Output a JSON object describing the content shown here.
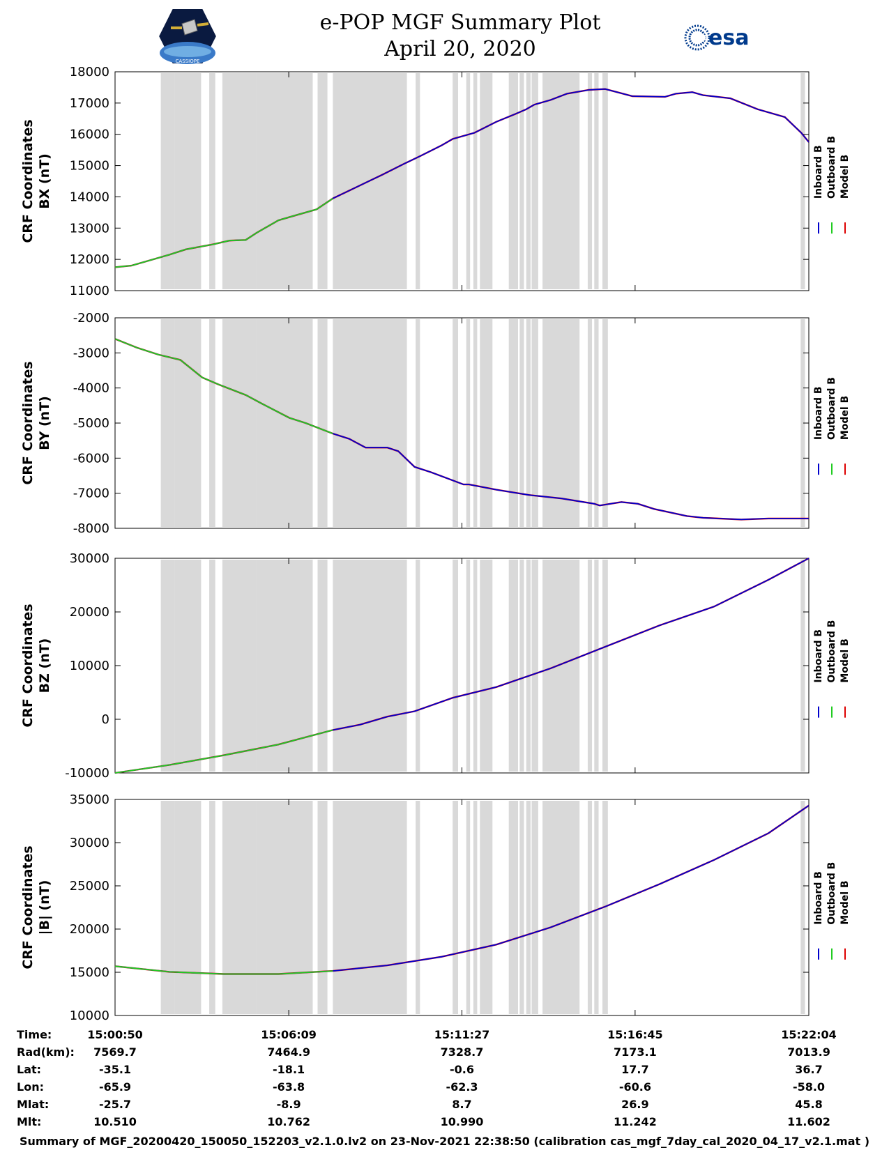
{
  "header": {
    "title_line1": "e-POP MGF Summary Plot",
    "title_line2": "April 20, 2020",
    "left_logo": "epop-cassiope-logo",
    "left_logo_text": "CASSIOPE",
    "right_logo": "esa-logo",
    "right_logo_text": "esa"
  },
  "colors": {
    "inboard": "#0000cc",
    "outboard": "#22cc22",
    "model": "#dd0000",
    "gap_shading": "#d9d9d9"
  },
  "chart_data": {
    "type": "line",
    "x_range_seconds": [
      0,
      1274
    ],
    "gap_intervals_seconds": [
      [
        84,
        110
      ],
      [
        110,
        158
      ],
      [
        173,
        184
      ],
      [
        197,
        261
      ],
      [
        261,
        363
      ],
      [
        372,
        390
      ],
      [
        400,
        536
      ],
      [
        552,
        560
      ],
      [
        620,
        630
      ],
      [
        645,
        652
      ],
      [
        658,
        665
      ],
      [
        670,
        693
      ],
      [
        723,
        740
      ],
      [
        743,
        751
      ],
      [
        755,
        763
      ],
      [
        765,
        777
      ],
      [
        785,
        853
      ],
      [
        868,
        876
      ],
      [
        880,
        888
      ],
      [
        895,
        905
      ],
      [
        1259,
        1267
      ]
    ],
    "outboard_until_seconds": 400,
    "legend": [
      "Inboard B",
      "Outboard B",
      "Model B"
    ],
    "panels": [
      {
        "id": "bx",
        "ylabel_line1": "CRF Coordinates",
        "ylabel_line2": "BX (nT)",
        "ylim": [
          11000,
          18000
        ],
        "yticks": [
          11000,
          12000,
          13000,
          14000,
          15000,
          16000,
          17000,
          18000
        ],
        "ytick_labels": [
          "11000",
          "12000",
          "13000",
          "14000",
          "15000",
          "16000",
          "17000",
          "18000"
        ],
        "x": [
          0,
          30,
          60,
          100,
          130,
          180,
          210,
          240,
          260,
          300,
          330,
          370,
          400,
          430,
          460,
          490,
          530,
          560,
          600,
          620,
          660,
          700,
          735,
          755,
          770,
          800,
          830,
          870,
          900,
          950,
          1010,
          1030,
          1060,
          1080,
          1130,
          1180,
          1230,
          1260,
          1274
        ],
        "y": [
          11750,
          11800,
          11950,
          12150,
          12320,
          12480,
          12600,
          12620,
          12850,
          13250,
          13400,
          13600,
          13950,
          14200,
          14450,
          14700,
          15050,
          15300,
          15650,
          15850,
          16050,
          16400,
          16650,
          16800,
          16950,
          17100,
          17300,
          17420,
          17450,
          17220,
          17200,
          17300,
          17350,
          17250,
          17150,
          16800,
          16550,
          16050,
          15750
        ]
      },
      {
        "id": "by",
        "ylabel_line1": "CRF Coordinates",
        "ylabel_line2": "BY (nT)",
        "ylim": [
          -8000,
          -2000
        ],
        "yticks": [
          -8000,
          -7000,
          -6000,
          -5000,
          -4000,
          -3000,
          -2000
        ],
        "ytick_labels": [
          "-8000",
          "-7000",
          "-6000",
          "-5000",
          "-4000",
          "-3000",
          "-2000"
        ],
        "x": [
          0,
          40,
          80,
          120,
          160,
          190,
          240,
          270,
          320,
          350,
          400,
          430,
          460,
          500,
          520,
          550,
          580,
          640,
          650,
          700,
          760,
          820,
          880,
          890,
          930,
          960,
          990,
          1050,
          1080,
          1150,
          1200,
          1274
        ],
        "y": [
          -2600,
          -2850,
          -3050,
          -3200,
          -3700,
          -3900,
          -4200,
          -4450,
          -4850,
          -5000,
          -5300,
          -5450,
          -5700,
          -5700,
          -5800,
          -6250,
          -6400,
          -6750,
          -6750,
          -6900,
          -7050,
          -7150,
          -7300,
          -7350,
          -7250,
          -7300,
          -7450,
          -7650,
          -7700,
          -7750,
          -7720,
          -7720
        ]
      },
      {
        "id": "bz",
        "ylabel_line1": "CRF Coordinates",
        "ylabel_line2": "BZ (nT)",
        "ylim": [
          -10000,
          30000
        ],
        "yticks": [
          -10000,
          0,
          10000,
          20000,
          30000
        ],
        "ytick_labels": [
          "-10000",
          "0",
          "10000",
          "20000",
          "30000"
        ],
        "x": [
          0,
          100,
          200,
          300,
          400,
          450,
          500,
          550,
          620,
          700,
          800,
          900,
          1000,
          1100,
          1200,
          1274
        ],
        "y": [
          -10000,
          -8500,
          -6700,
          -4700,
          -2000,
          -1000,
          500,
          1500,
          4000,
          6000,
          9500,
          13500,
          17500,
          21000,
          26000,
          30000
        ]
      },
      {
        "id": "bmag",
        "ylabel_line1": "CRF Coordinates",
        "ylabel_line2": "|B| (nT)",
        "ylim": [
          10000,
          35000
        ],
        "yticks": [
          10000,
          15000,
          20000,
          25000,
          30000,
          35000
        ],
        "ytick_labels": [
          "10000",
          "15000",
          "20000",
          "25000",
          "30000",
          "35000"
        ],
        "x": [
          0,
          100,
          200,
          300,
          400,
          500,
          600,
          700,
          800,
          900,
          1000,
          1100,
          1200,
          1274
        ],
        "y": [
          15700,
          15050,
          14800,
          14800,
          15150,
          15800,
          16800,
          18200,
          20200,
          22600,
          25200,
          28000,
          31100,
          34300
        ]
      }
    ]
  },
  "info_table": {
    "row_labels": [
      "Time:",
      "Rad(km):",
      "Lat:",
      "Lon:",
      "Mlat:",
      "Mlt:"
    ],
    "columns": [
      [
        "15:00:50",
        "7569.7",
        "-35.1",
        "-65.9",
        "-25.7",
        "10.510"
      ],
      [
        "15:06:09",
        "7464.9",
        "-18.1",
        "-63.8",
        "-8.9",
        "10.762"
      ],
      [
        "15:11:27",
        "7328.7",
        "-0.6",
        "-62.3",
        "8.7",
        "10.990"
      ],
      [
        "15:16:45",
        "7173.1",
        "17.7",
        "-60.6",
        "26.9",
        "11.242"
      ],
      [
        "15:22:04",
        "7013.9",
        "36.7",
        "-58.0",
        "45.8",
        "11.602"
      ]
    ]
  },
  "footer": {
    "text": "Summary of MGF_20200420_150050_152203_v2.1.0.lv2 on 23-Nov-2021 22:38:50 (calibration cas_mgf_7day_cal_2020_04_17_v2.1.mat )"
  }
}
